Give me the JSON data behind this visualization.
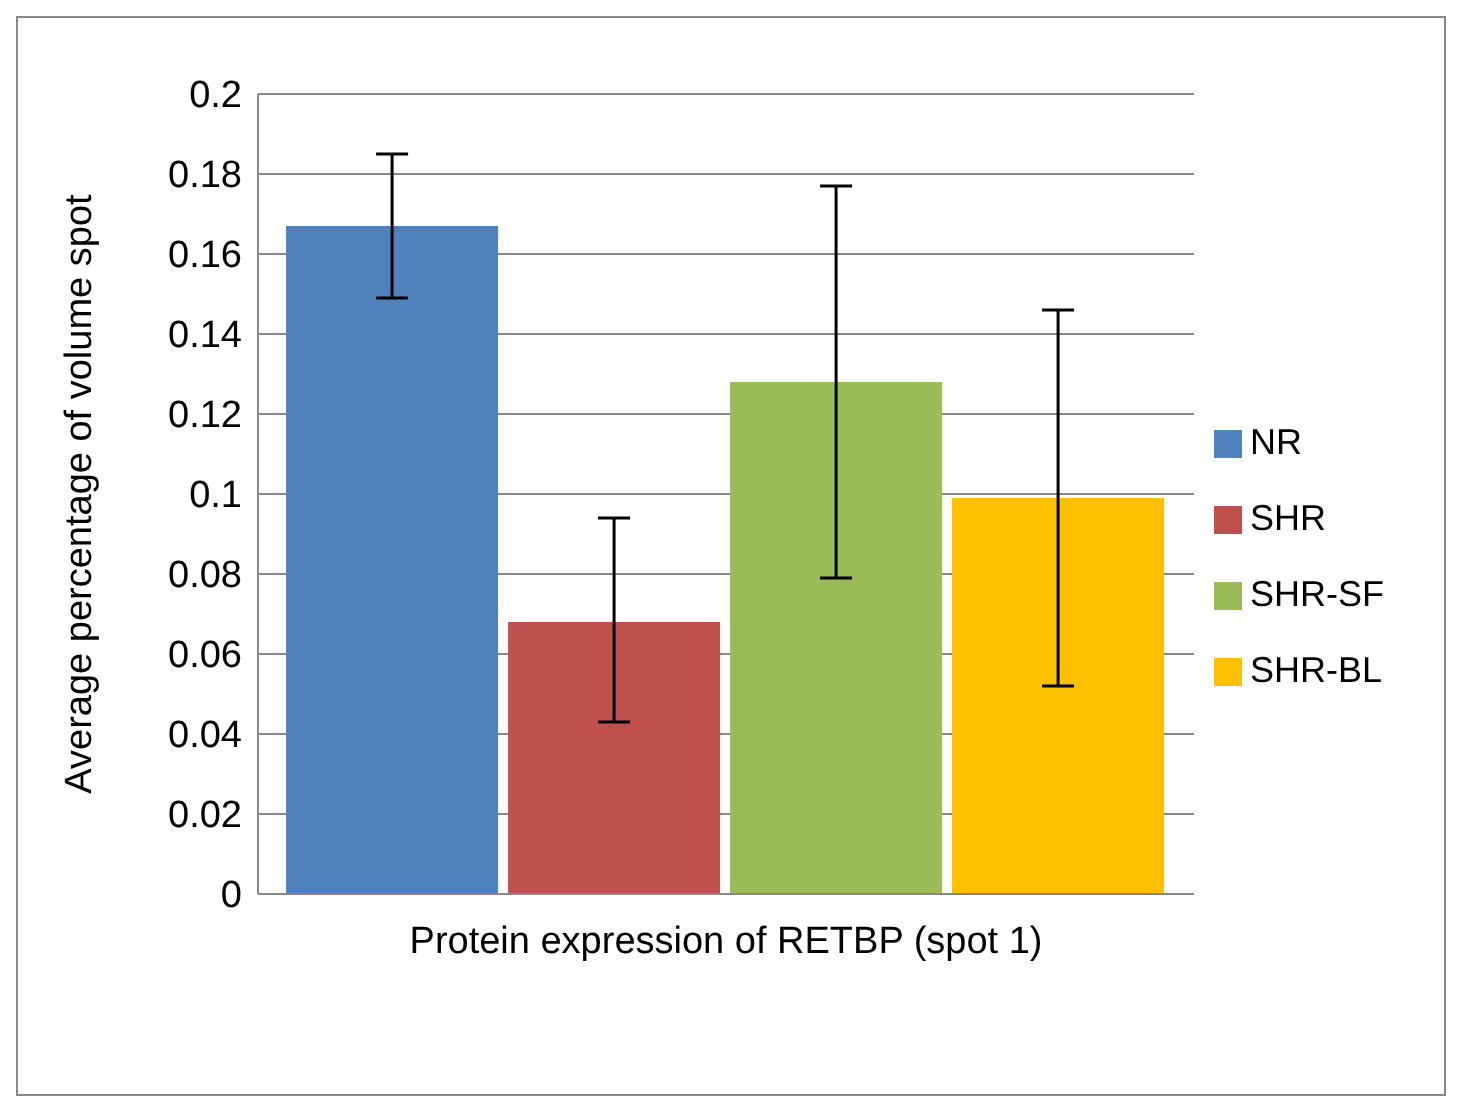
{
  "chart_data": {
    "type": "bar",
    "xlabel": "Protein expression of RETBP (spot 1)",
    "ylabel": "Average percentage of volume spot",
    "categories": [
      null
    ],
    "series": [
      {
        "name": "NR",
        "color": "#4f81bd",
        "values": [
          0.167
        ],
        "errors": [
          [
            0.149,
            0.185
          ]
        ]
      },
      {
        "name": "SHR",
        "color": "#c0504d",
        "values": [
          0.068
        ],
        "errors": [
          [
            0.043,
            0.094
          ]
        ]
      },
      {
        "name": "SHR-SF",
        "color": "#9bbb59",
        "values": [
          0.128
        ],
        "errors": [
          [
            0.079,
            0.177
          ]
        ]
      },
      {
        "name": "SHR-BL",
        "color": "#ffc000",
        "values": [
          0.099
        ],
        "errors": [
          [
            0.052,
            0.146
          ]
        ]
      }
    ],
    "ylim": [
      0,
      0.2
    ],
    "yticks": [
      0,
      0.02,
      0.04,
      0.06,
      0.08,
      0.1,
      0.12,
      0.14,
      0.16,
      0.18,
      0.2
    ],
    "grid": "y",
    "legend": "right"
  }
}
